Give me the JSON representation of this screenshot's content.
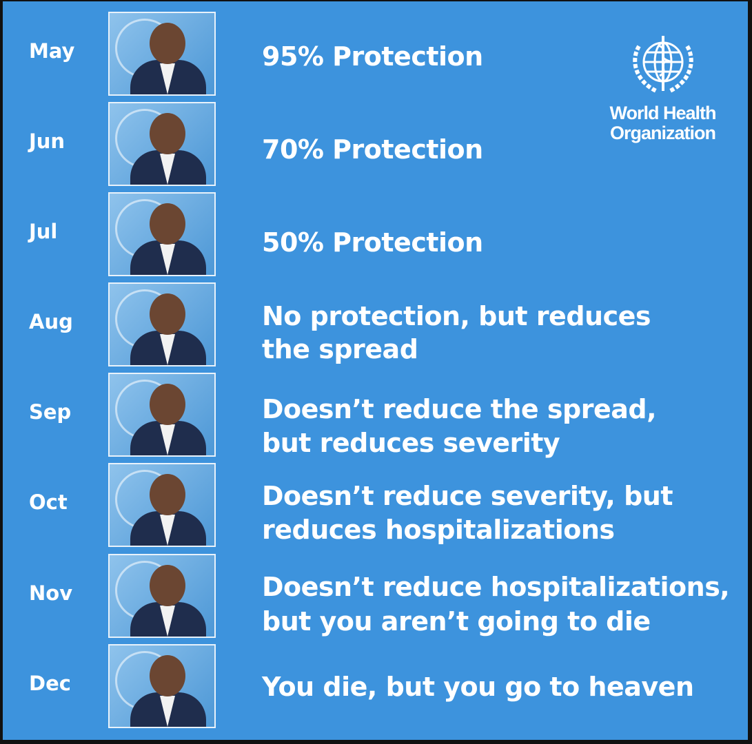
{
  "logo": {
    "line1": "World Health",
    "line2": "Organization"
  },
  "rows": [
    {
      "month": "May",
      "lines": [
        "95% Protection"
      ]
    },
    {
      "month": "Jun",
      "lines": [
        "70% Protection"
      ]
    },
    {
      "month": "Jul",
      "lines": [
        "50% Protection"
      ]
    },
    {
      "month": "Aug",
      "lines": [
        "No protection, but reduces",
        "the spread"
      ]
    },
    {
      "month": "Sep",
      "lines": [
        "Doesn’t reduce the spread,",
        "but reduces severity"
      ]
    },
    {
      "month": "Oct",
      "lines": [
        "Doesn’t reduce severity, but",
        "reduces hospitalizations"
      ]
    },
    {
      "month": "Nov",
      "lines": [
        "Doesn’t reduce hospitalizations,",
        "but you aren’t going to die"
      ]
    },
    {
      "month": "Dec",
      "lines": [
        "You die, but you go to heaven"
      ]
    }
  ],
  "colors": {
    "background": "#3d93dd",
    "text": "#ffffff"
  }
}
